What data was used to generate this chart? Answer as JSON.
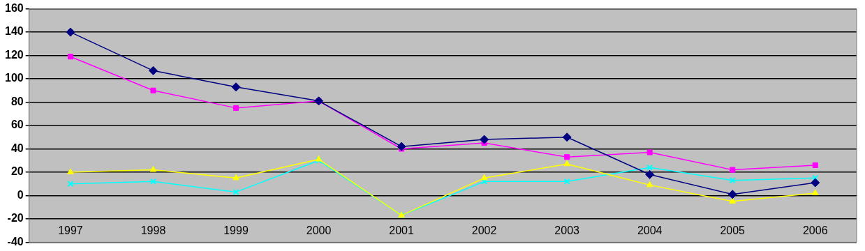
{
  "chart_data": {
    "type": "line",
    "categories": [
      "1997",
      "1998",
      "1999",
      "2000",
      "2001",
      "2002",
      "2003",
      "2004",
      "2005",
      "2006"
    ],
    "series": [
      {
        "color": "#000080",
        "marker": "diamond",
        "values": [
          140,
          107,
          93,
          81,
          42,
          48,
          50,
          18,
          1,
          11
        ]
      },
      {
        "color": "#ff00ff",
        "marker": "square",
        "values": [
          119,
          90,
          75,
          81,
          40,
          45,
          33,
          37,
          22,
          26
        ]
      },
      {
        "color": "#ffff00",
        "marker": "triangle",
        "values": [
          20,
          22,
          15,
          31,
          -17,
          15,
          27,
          9,
          -5,
          2
        ]
      },
      {
        "color": "#00ffff",
        "marker": "cross",
        "values": [
          10,
          12,
          3,
          30,
          -17,
          12,
          12,
          24,
          13,
          15
        ]
      }
    ],
    "ylim": [
      -40,
      160
    ],
    "yticks": [
      -40,
      -20,
      0,
      20,
      40,
      60,
      80,
      100,
      120,
      140,
      160
    ],
    "grid": "y",
    "legend": false
  }
}
